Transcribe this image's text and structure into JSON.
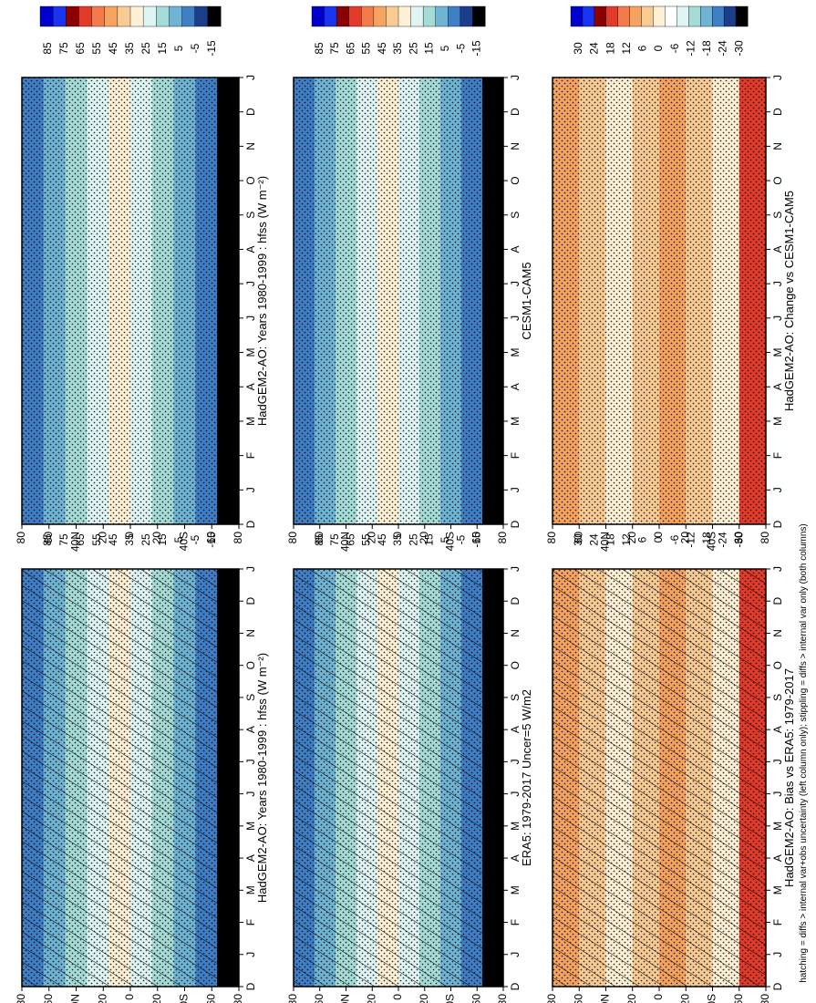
{
  "figure_note": "hatching = diffs > internal var+obs uncertainty (left column only); stippling = diffs > internal var only (both columns)",
  "chart_data": [
    {
      "id": "p1",
      "type": "heatmap",
      "title": "HadGEM2-AO: Years 1980-1999 : hfss (W m⁻²)",
      "x_ticks": [
        "D",
        "J",
        "F",
        "M",
        "A",
        "M",
        "J",
        "J",
        "A",
        "S",
        "O",
        "N",
        "D",
        "J"
      ],
      "y_ticks": [
        "80",
        "60",
        "40N",
        "20",
        "0",
        "20",
        "40S",
        "60",
        "80"
      ],
      "colorbar": [
        "85",
        "75",
        "65",
        "55",
        "45",
        "35",
        "25",
        "15",
        "5",
        "-5",
        "-15"
      ],
      "hatching": true,
      "stippling": true
    },
    {
      "id": "p2",
      "type": "heatmap",
      "title": "HadGEM2-AO: Years 1980-1999 : hfss (W m⁻²)",
      "x_ticks": [
        "D",
        "J",
        "F",
        "M",
        "A",
        "M",
        "J",
        "J",
        "A",
        "S",
        "O",
        "N",
        "D",
        "J"
      ],
      "y_ticks": [
        "80",
        "60",
        "40N",
        "20",
        "0",
        "20",
        "40S",
        "60",
        "80"
      ],
      "colorbar": [
        "85",
        "75",
        "65",
        "55",
        "45",
        "35",
        "25",
        "15",
        "5",
        "-5",
        "-15"
      ],
      "hatching": false,
      "stippling": true
    },
    {
      "id": "p3",
      "type": "heatmap",
      "title": "ERA5: 1979-2017 Uncer=5 W/m2",
      "x_ticks": [
        "D",
        "J",
        "F",
        "M",
        "A",
        "M",
        "J",
        "J",
        "A",
        "S",
        "O",
        "N",
        "D",
        "J"
      ],
      "y_ticks": [
        "80",
        "60",
        "40N",
        "20",
        "0",
        "20",
        "40S",
        "60",
        "80"
      ],
      "colorbar": [
        "85",
        "75",
        "65",
        "55",
        "45",
        "35",
        "25",
        "15",
        "5",
        "-5",
        "-15"
      ],
      "hatching": true,
      "stippling": true
    },
    {
      "id": "p4",
      "type": "heatmap",
      "title": "CESM1-CAM5",
      "x_ticks": [
        "D",
        "J",
        "F",
        "M",
        "A",
        "M",
        "J",
        "J",
        "A",
        "S",
        "O",
        "N",
        "D",
        "J"
      ],
      "y_ticks": [
        "80",
        "60",
        "40N",
        "20",
        "0",
        "20",
        "40S",
        "60",
        "80"
      ],
      "colorbar": [
        "85",
        "75",
        "65",
        "55",
        "45",
        "35",
        "25",
        "15",
        "5",
        "-5",
        "-15"
      ],
      "hatching": false,
      "stippling": true
    },
    {
      "id": "p5",
      "type": "heatmap",
      "title": "HadGEM2-AO: Bias vs ERA5: 1979-2017",
      "x_ticks": [
        "D",
        "J",
        "F",
        "M",
        "A",
        "M",
        "J",
        "J",
        "A",
        "S",
        "O",
        "N",
        "D",
        "J"
      ],
      "y_ticks": [
        "80",
        "60",
        "40N",
        "20",
        "0",
        "20",
        "40S",
        "60",
        "80"
      ],
      "colorbar": [
        "30",
        "24",
        "18",
        "12",
        "6",
        "0",
        "-6",
        "-12",
        "-18",
        "-24",
        "-30"
      ],
      "hatching": true,
      "stippling": true
    },
    {
      "id": "p6",
      "type": "heatmap",
      "title": "HadGEM2-AO: Change vs CESM1-CAM5",
      "x_ticks": [
        "D",
        "J",
        "F",
        "M",
        "A",
        "M",
        "J",
        "J",
        "A",
        "S",
        "O",
        "N",
        "D",
        "J"
      ],
      "y_ticks": [
        "80",
        "60",
        "40N",
        "20",
        "0",
        "20",
        "40S",
        "60",
        "80"
      ],
      "colorbar": [
        "30",
        "24",
        "18",
        "12",
        "6",
        "0",
        "-6",
        "-12",
        "-18",
        "-24",
        "-30"
      ],
      "hatching": false,
      "stippling": true
    }
  ],
  "colors": {
    "abs_scale": [
      "#0000cc",
      "#1a33ee",
      "#8b0000",
      "#e33b2a",
      "#f47a4a",
      "#f5a460",
      "#f8cb95",
      "#fdf0d5",
      "#dff5f3",
      "#a5dcd7",
      "#6fb4d4",
      "#3f7fc6",
      "#1a3e8a",
      "#000000"
    ],
    "diff_scale": [
      "#0000cc",
      "#1a33ee",
      "#8b0000",
      "#e33b2a",
      "#f47a4a",
      "#f5a460",
      "#f8cb95",
      "#fdf0d5",
      "#ffffff",
      "#dff5f3",
      "#a5dcd7",
      "#6fb4d4",
      "#3f7fc6",
      "#1a3e8a",
      "#000000"
    ]
  }
}
